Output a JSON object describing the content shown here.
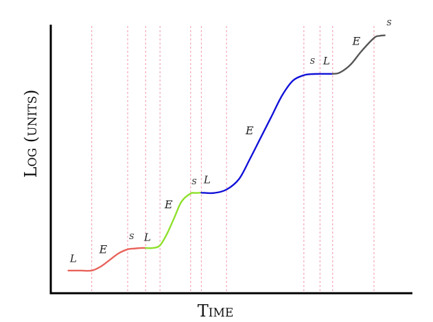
{
  "chart_data": {
    "type": "line",
    "title": "",
    "xlabel": "Time",
    "ylabel": "Log (units)",
    "xlim": [
      0,
      100
    ],
    "ylim": [
      0,
      100
    ],
    "grid": false,
    "phase_boundaries": [
      11,
      21,
      26,
      30,
      38.5,
      41.5,
      48.5,
      70,
      74.5,
      78,
      89.5
    ],
    "series": [
      {
        "color": "#e8625a",
        "points": [
          [
            4.5,
            8
          ],
          [
            8,
            8
          ],
          [
            11,
            8
          ],
          [
            13.5,
            9.5
          ],
          [
            16,
            12
          ],
          [
            18.5,
            14.5
          ],
          [
            21,
            16
          ],
          [
            23,
            16.3
          ],
          [
            25,
            16.5
          ],
          [
            26,
            16.5
          ]
        ]
      },
      {
        "color": "#8ee02a",
        "points": [
          [
            26,
            16.5
          ],
          [
            28,
            16.5
          ],
          [
            30,
            17.5
          ],
          [
            32,
            22
          ],
          [
            34,
            28
          ],
          [
            36,
            34
          ],
          [
            38.5,
            37
          ],
          [
            40,
            37.2
          ],
          [
            41.5,
            37.3
          ]
        ]
      },
      {
        "color": "#1010d8",
        "points": [
          [
            41.5,
            37.3
          ],
          [
            45,
            37.2
          ],
          [
            48.5,
            38.5
          ],
          [
            52,
            42.5
          ],
          [
            55,
            50
          ],
          [
            58,
            58
          ],
          [
            61,
            66
          ],
          [
            64,
            74
          ],
          [
            67,
            79.5
          ],
          [
            70,
            81.5
          ],
          [
            72,
            81.9
          ],
          [
            74.5,
            82
          ],
          [
            76,
            82
          ],
          [
            78,
            82
          ]
        ]
      },
      {
        "color": "#555555",
        "points": [
          [
            78,
            82
          ],
          [
            80,
            82.5
          ],
          [
            83,
            85.5
          ],
          [
            86,
            90.5
          ],
          [
            89.5,
            95.5
          ],
          [
            91,
            96.3
          ],
          [
            92.5,
            96.5
          ]
        ]
      }
    ],
    "annotations": [
      {
        "text": "L",
        "x": 5.9,
        "y": 11.2,
        "size": 15
      },
      {
        "text": "E",
        "x": 14.2,
        "y": 14.6,
        "size": 16
      },
      {
        "text": "S",
        "x": 22.1,
        "y": 19.8,
        "size": 11
      },
      {
        "text": "L",
        "x": 26.5,
        "y": 19.2,
        "size": 15
      },
      {
        "text": "E",
        "x": 32.4,
        "y": 31.5,
        "size": 16
      },
      {
        "text": "S",
        "x": 39.5,
        "y": 40.5,
        "size": 11
      },
      {
        "text": "L",
        "x": 43.1,
        "y": 40.8,
        "size": 15
      },
      {
        "text": "E",
        "x": 54.9,
        "y": 59.3,
        "size": 16
      },
      {
        "text": "S",
        "x": 72.4,
        "y": 85.8,
        "size": 11
      },
      {
        "text": "L",
        "x": 76.3,
        "y": 85.6,
        "size": 15
      },
      {
        "text": "E",
        "x": 84.6,
        "y": 92.9,
        "size": 16
      },
      {
        "text": "S",
        "x": 93.7,
        "y": 100.2,
        "size": 11
      }
    ]
  }
}
